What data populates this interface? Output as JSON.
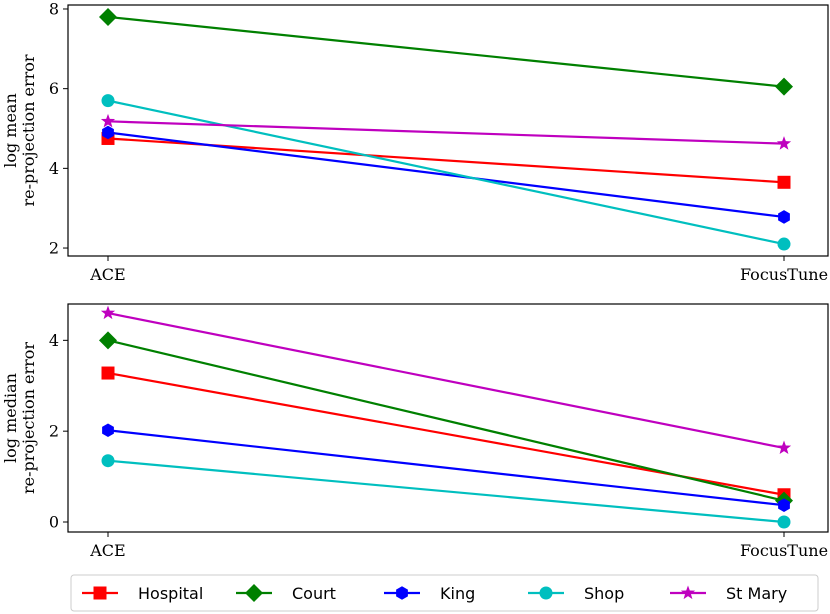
{
  "chart_data": [
    {
      "type": "line",
      "categories": [
        "ACE",
        "FocusTune"
      ],
      "ylabel": [
        "log mean",
        "re-projection error"
      ],
      "ylim": [
        1.8,
        8.1
      ],
      "yticks": [
        2,
        4,
        6,
        8
      ],
      "grid": false,
      "series": [
        {
          "name": "Hospital",
          "values": [
            4.75,
            3.65
          ]
        },
        {
          "name": "Court",
          "values": [
            7.8,
            6.05
          ]
        },
        {
          "name": "King",
          "values": [
            4.9,
            2.78
          ]
        },
        {
          "name": "Shop",
          "values": [
            5.7,
            2.1
          ]
        },
        {
          "name": "St Mary",
          "values": [
            5.18,
            4.62
          ]
        }
      ]
    },
    {
      "type": "line",
      "categories": [
        "ACE",
        "FocusTune"
      ],
      "ylabel": [
        "log median",
        "re-projection error"
      ],
      "ylim": [
        -0.22,
        4.8
      ],
      "yticks": [
        0,
        2,
        4
      ],
      "grid": false,
      "series": [
        {
          "name": "Hospital",
          "values": [
            3.28,
            0.6
          ]
        },
        {
          "name": "Court",
          "values": [
            4.0,
            0.47
          ]
        },
        {
          "name": "King",
          "values": [
            2.02,
            0.37
          ]
        },
        {
          "name": "Shop",
          "values": [
            1.35,
            0.0
          ]
        },
        {
          "name": "St Mary",
          "values": [
            4.6,
            1.63
          ]
        }
      ]
    }
  ],
  "legend": {
    "placement": "bottom",
    "items": [
      {
        "name": "Hospital",
        "color": "#ff0000",
        "marker": "square"
      },
      {
        "name": "Court",
        "color": "#008000",
        "marker": "diamond"
      },
      {
        "name": "King",
        "color": "#0000ff",
        "marker": "hexagon"
      },
      {
        "name": "Shop",
        "color": "#00bfbf",
        "marker": "circle"
      },
      {
        "name": "St Mary",
        "color": "#bf00bf",
        "marker": "star"
      }
    ]
  }
}
